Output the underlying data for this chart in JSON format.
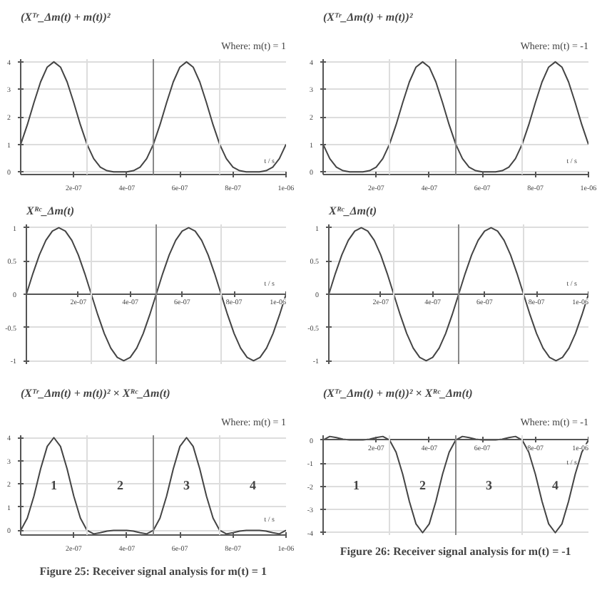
{
  "chart_data": [
    {
      "type": "line",
      "title": "(Xᵀʳ_Δm(t) + m(t))²",
      "subtitle": "Where: m(t) = 1",
      "xlabel": "t / s",
      "x": [
        0,
        2.5e-08,
        5e-08,
        7.5e-08,
        1e-07,
        1.25e-07,
        1.5e-07,
        1.75e-07,
        2e-07,
        2.25e-07,
        2.5e-07,
        2.75e-07,
        3e-07,
        3.25e-07,
        3.5e-07,
        3.75e-07,
        4e-07,
        4.25e-07,
        4.5e-07,
        4.75e-07,
        5e-07,
        5.25e-07,
        5.5e-07,
        5.75e-07,
        6e-07,
        6.25e-07,
        6.5e-07,
        6.75e-07,
        7e-07,
        7.25e-07,
        7.5e-07,
        7.75e-07,
        8e-07,
        8.25e-07,
        8.5e-07,
        8.75e-07,
        9e-07,
        9.25e-07,
        9.5e-07,
        9.75e-07,
        1e-06
      ],
      "series": [
        {
          "color": "#444444",
          "values": [
            1,
            1.71,
            2.52,
            3.27,
            3.81,
            4,
            3.81,
            3.27,
            2.52,
            1.71,
            1,
            0.48,
            0.17,
            0.04,
            0,
            0,
            0,
            0.04,
            0.17,
            0.48,
            1,
            1.71,
            2.52,
            3.27,
            3.81,
            4,
            3.81,
            3.27,
            2.52,
            1.71,
            1,
            0.48,
            0.17,
            0.04,
            0,
            0,
            0,
            0.04,
            0.17,
            0.48,
            1
          ]
        }
      ],
      "xlim": [
        0,
        1e-06
      ],
      "xticks": [
        {
          "value": 2e-07,
          "label": "2e-07"
        },
        {
          "value": 4e-07,
          "label": "4e-07"
        },
        {
          "value": 6e-07,
          "label": "6e-07"
        },
        {
          "value": 8e-07,
          "label": "8e-07"
        },
        {
          "value": 1e-06,
          "label": "1e-06"
        }
      ],
      "ylim": [
        -0.1,
        4.1
      ],
      "yticks": [
        0,
        1,
        2,
        3,
        4
      ],
      "grid": "y",
      "ref_lines": [
        {
          "axis": "x",
          "value": 2.5e-07,
          "color": "#dddddd"
        },
        {
          "axis": "x",
          "value": 5e-07,
          "color": "#888888"
        },
        {
          "axis": "x",
          "value": 7.5e-07,
          "color": "#dddddd"
        }
      ]
    },
    {
      "type": "line",
      "title": "(Xᵀʳ_Δm(t) + m(t))²",
      "subtitle": "Where: m(t) = -1",
      "xlabel": "t / s",
      "x": [
        0,
        2.5e-08,
        5e-08,
        7.5e-08,
        1e-07,
        1.25e-07,
        1.5e-07,
        1.75e-07,
        2e-07,
        2.25e-07,
        2.5e-07,
        2.75e-07,
        3e-07,
        3.25e-07,
        3.5e-07,
        3.75e-07,
        4e-07,
        4.25e-07,
        4.5e-07,
        4.75e-07,
        5e-07,
        5.25e-07,
        5.5e-07,
        5.75e-07,
        6e-07,
        6.25e-07,
        6.5e-07,
        6.75e-07,
        7e-07,
        7.25e-07,
        7.5e-07,
        7.75e-07,
        8e-07,
        8.25e-07,
        8.5e-07,
        8.75e-07,
        9e-07,
        9.25e-07,
        9.5e-07,
        9.75e-07,
        1e-06
      ],
      "series": [
        {
          "color": "#444444",
          "values": [
            1,
            0.48,
            0.17,
            0.04,
            0,
            0,
            0,
            0.04,
            0.17,
            0.48,
            1,
            1.71,
            2.52,
            3.27,
            3.81,
            4,
            3.81,
            3.27,
            2.52,
            1.71,
            1,
            0.48,
            0.17,
            0.04,
            0,
            0,
            0,
            0.04,
            0.17,
            0.48,
            1,
            1.71,
            2.52,
            3.27,
            3.81,
            4,
            3.81,
            3.27,
            2.52,
            1.71,
            1
          ]
        }
      ],
      "xlim": [
        0,
        1e-06
      ],
      "xticks": [
        {
          "value": 2e-07,
          "label": "2e-07"
        },
        {
          "value": 4e-07,
          "label": "4e-07"
        },
        {
          "value": 6e-07,
          "label": "6e-07"
        },
        {
          "value": 8e-07,
          "label": "8e-07"
        },
        {
          "value": 1e-06,
          "label": "1e-06"
        }
      ],
      "ylim": [
        -0.1,
        4.1
      ],
      "yticks": [
        0,
        1,
        2,
        3,
        4
      ],
      "grid": "y",
      "ref_lines": [
        {
          "axis": "x",
          "value": 2.5e-07,
          "color": "#dddddd"
        },
        {
          "axis": "x",
          "value": 5e-07,
          "color": "#888888"
        },
        {
          "axis": "x",
          "value": 7.5e-07,
          "color": "#dddddd"
        }
      ]
    },
    {
      "type": "line",
      "title": "Xᴿᶜ_Δm(t)",
      "xlabel": "t / s",
      "x": [
        0,
        2.5e-08,
        5e-08,
        7.5e-08,
        1e-07,
        1.25e-07,
        1.5e-07,
        1.75e-07,
        2e-07,
        2.25e-07,
        2.5e-07,
        2.75e-07,
        3e-07,
        3.25e-07,
        3.5e-07,
        3.75e-07,
        4e-07,
        4.25e-07,
        4.5e-07,
        4.75e-07,
        5e-07,
        5.25e-07,
        5.5e-07,
        5.75e-07,
        6e-07,
        6.25e-07,
        6.5e-07,
        6.75e-07,
        7e-07,
        7.25e-07,
        7.5e-07,
        7.75e-07,
        8e-07,
        8.25e-07,
        8.5e-07,
        8.75e-07,
        9e-07,
        9.25e-07,
        9.5e-07,
        9.75e-07,
        1e-06
      ],
      "series": [
        {
          "color": "#444444",
          "values": [
            0,
            0.31,
            0.59,
            0.81,
            0.95,
            1,
            0.95,
            0.81,
            0.59,
            0.31,
            0,
            -0.31,
            -0.59,
            -0.81,
            -0.95,
            -1,
            -0.95,
            -0.81,
            -0.59,
            -0.31,
            0,
            0.31,
            0.59,
            0.81,
            0.95,
            1,
            0.95,
            0.81,
            0.59,
            0.31,
            0,
            -0.31,
            -0.59,
            -0.81,
            -0.95,
            -1,
            -0.95,
            -0.81,
            -0.59,
            -0.31,
            0
          ]
        }
      ],
      "xlim": [
        0,
        1e-06
      ],
      "xticks": [
        {
          "value": 2e-07,
          "label": "2e-07"
        },
        {
          "value": 4e-07,
          "label": "4e-07"
        },
        {
          "value": 6e-07,
          "label": "6e-07"
        },
        {
          "value": 8e-07,
          "label": "8e-07"
        },
        {
          "value": 1e-06,
          "label": "1e-06"
        }
      ],
      "ylim": [
        -1.05,
        1.05
      ],
      "yticks": [
        -1,
        -0.5,
        0,
        0.5,
        1
      ],
      "grid": "y",
      "ref_lines": [
        {
          "axis": "x",
          "value": 2.5e-07,
          "color": "#dddddd"
        },
        {
          "axis": "x",
          "value": 5e-07,
          "color": "#888888"
        },
        {
          "axis": "x",
          "value": 7.5e-07,
          "color": "#dddddd"
        }
      ]
    },
    {
      "type": "line",
      "title": "Xᴿᶜ_Δm(t)",
      "xlabel": "t / s",
      "x": [
        0,
        2.5e-08,
        5e-08,
        7.5e-08,
        1e-07,
        1.25e-07,
        1.5e-07,
        1.75e-07,
        2e-07,
        2.25e-07,
        2.5e-07,
        2.75e-07,
        3e-07,
        3.25e-07,
        3.5e-07,
        3.75e-07,
        4e-07,
        4.25e-07,
        4.5e-07,
        4.75e-07,
        5e-07,
        5.25e-07,
        5.5e-07,
        5.75e-07,
        6e-07,
        6.25e-07,
        6.5e-07,
        6.75e-07,
        7e-07,
        7.25e-07,
        7.5e-07,
        7.75e-07,
        8e-07,
        8.25e-07,
        8.5e-07,
        8.75e-07,
        9e-07,
        9.25e-07,
        9.5e-07,
        9.75e-07,
        1e-06
      ],
      "series": [
        {
          "color": "#444444",
          "values": [
            0,
            0.31,
            0.59,
            0.81,
            0.95,
            1,
            0.95,
            0.81,
            0.59,
            0.31,
            0,
            -0.31,
            -0.59,
            -0.81,
            -0.95,
            -1,
            -0.95,
            -0.81,
            -0.59,
            -0.31,
            0,
            0.31,
            0.59,
            0.81,
            0.95,
            1,
            0.95,
            0.81,
            0.59,
            0.31,
            0,
            -0.31,
            -0.59,
            -0.81,
            -0.95,
            -1,
            -0.95,
            -0.81,
            -0.59,
            -0.31,
            0
          ]
        }
      ],
      "xlim": [
        0,
        1e-06
      ],
      "xticks": [
        {
          "value": 2e-07,
          "label": "2e-07"
        },
        {
          "value": 4e-07,
          "label": "4e-07"
        },
        {
          "value": 6e-07,
          "label": "6e-07"
        },
        {
          "value": 8e-07,
          "label": "8e-07"
        },
        {
          "value": 1e-06,
          "label": "1e-06"
        }
      ],
      "ylim": [
        -1.05,
        1.05
      ],
      "yticks": [
        -1,
        -0.5,
        0,
        0.5,
        1
      ],
      "grid": "y",
      "ref_lines": [
        {
          "axis": "x",
          "value": 2.5e-07,
          "color": "#dddddd"
        },
        {
          "axis": "x",
          "value": 5e-07,
          "color": "#888888"
        },
        {
          "axis": "x",
          "value": 7.5e-07,
          "color": "#dddddd"
        }
      ]
    },
    {
      "type": "line",
      "title": "(Xᵀʳ_Δm(t) + m(t))² × Xᴿᶜ_Δm(t)",
      "subtitle": "Where: m(t) = 1",
      "xlabel": "t / s",
      "x": [
        0,
        2.5e-08,
        5e-08,
        7.5e-08,
        1e-07,
        1.25e-07,
        1.5e-07,
        1.75e-07,
        2e-07,
        2.25e-07,
        2.5e-07,
        2.75e-07,
        3e-07,
        3.25e-07,
        3.5e-07,
        3.75e-07,
        4e-07,
        4.25e-07,
        4.5e-07,
        4.75e-07,
        5e-07,
        5.25e-07,
        5.5e-07,
        5.75e-07,
        6e-07,
        6.25e-07,
        6.5e-07,
        6.75e-07,
        7e-07,
        7.25e-07,
        7.5e-07,
        7.75e-07,
        8e-07,
        8.25e-07,
        8.5e-07,
        8.75e-07,
        9e-07,
        9.25e-07,
        9.5e-07,
        9.75e-07,
        1e-06
      ],
      "series": [
        {
          "color": "#444444",
          "values": [
            0,
            0.53,
            1.48,
            2.65,
            3.62,
            4,
            3.62,
            2.65,
            1.48,
            0.53,
            0,
            -0.15,
            -0.1,
            -0.03,
            0,
            0,
            0,
            -0.03,
            -0.1,
            -0.15,
            0,
            0.53,
            1.48,
            2.65,
            3.62,
            4,
            3.62,
            2.65,
            1.48,
            0.53,
            0,
            -0.15,
            -0.1,
            -0.03,
            0,
            0,
            0,
            -0.03,
            -0.1,
            -0.15,
            0
          ]
        }
      ],
      "xlim": [
        0,
        1e-06
      ],
      "xticks": [
        {
          "value": 2e-07,
          "label": "2e-07"
        },
        {
          "value": 4e-07,
          "label": "4e-07"
        },
        {
          "value": 6e-07,
          "label": "6e-07"
        },
        {
          "value": 8e-07,
          "label": "8e-07"
        },
        {
          "value": 1e-06,
          "label": "1e-06"
        }
      ],
      "ylim": [
        -0.2,
        4.1
      ],
      "yticks": [
        0,
        1,
        2,
        3,
        4
      ],
      "grid": "y",
      "ref_lines": [
        {
          "axis": "x",
          "value": 2.5e-07,
          "color": "#dddddd"
        },
        {
          "axis": "x",
          "value": 5e-07,
          "color": "#888888"
        },
        {
          "axis": "x",
          "value": 7.5e-07,
          "color": "#dddddd"
        }
      ],
      "annotations": [
        "1",
        "2",
        "3",
        "4",
        "Figure 25: Receiver signal analysis for m(t) = 1"
      ]
    },
    {
      "type": "line",
      "title": "(Xᵀʳ_Δm(t) + m(t))² × Xᴿᶜ_Δm(t)",
      "subtitle": "Where: m(t) = -1",
      "xlabel": "t / s",
      "x": [
        0,
        2.5e-08,
        5e-08,
        7.5e-08,
        1e-07,
        1.25e-07,
        1.5e-07,
        1.75e-07,
        2e-07,
        2.25e-07,
        2.5e-07,
        2.75e-07,
        3e-07,
        3.25e-07,
        3.5e-07,
        3.75e-07,
        4e-07,
        4.25e-07,
        4.5e-07,
        4.75e-07,
        5e-07,
        5.25e-07,
        5.5e-07,
        5.75e-07,
        6e-07,
        6.25e-07,
        6.5e-07,
        6.75e-07,
        7e-07,
        7.25e-07,
        7.5e-07,
        7.75e-07,
        8e-07,
        8.25e-07,
        8.5e-07,
        8.75e-07,
        9e-07,
        9.25e-07,
        9.5e-07,
        9.75e-07,
        1e-06
      ],
      "series": [
        {
          "color": "#444444",
          "values": [
            0,
            0.15,
            0.1,
            0.03,
            0,
            0,
            0,
            0.03,
            0.1,
            0.15,
            0,
            -0.53,
            -1.48,
            -2.65,
            -3.62,
            -4,
            -3.62,
            -2.65,
            -1.48,
            -0.53,
            0,
            0.15,
            0.1,
            0.03,
            0,
            0,
            0,
            0.03,
            0.1,
            0.15,
            0,
            -0.53,
            -1.48,
            -2.65,
            -3.62,
            -4,
            -3.62,
            -2.65,
            -1.48,
            -0.53,
            0
          ]
        }
      ],
      "xlim": [
        0,
        1e-06
      ],
      "xticks": [
        {
          "value": 2e-07,
          "label": "2e-07"
        },
        {
          "value": 4e-07,
          "label": "4e-07"
        },
        {
          "value": 6e-07,
          "label": "6e-07"
        },
        {
          "value": 8e-07,
          "label": "8e-07"
        },
        {
          "value": 1e-06,
          "label": "1e-06"
        }
      ],
      "ylim": [
        -4.1,
        0.2
      ],
      "yticks": [
        -4,
        -3,
        -2,
        -1,
        0
      ],
      "grid": "y",
      "ref_lines": [
        {
          "axis": "x",
          "value": 2.5e-07,
          "color": "#dddddd"
        },
        {
          "axis": "x",
          "value": 5e-07,
          "color": "#888888"
        },
        {
          "axis": "x",
          "value": 7.5e-07,
          "color": "#dddddd"
        }
      ],
      "annotations": [
        "1",
        "2",
        "3",
        "4",
        "Figure 26: Receiver signal analysis for m(t) = -1"
      ]
    }
  ]
}
